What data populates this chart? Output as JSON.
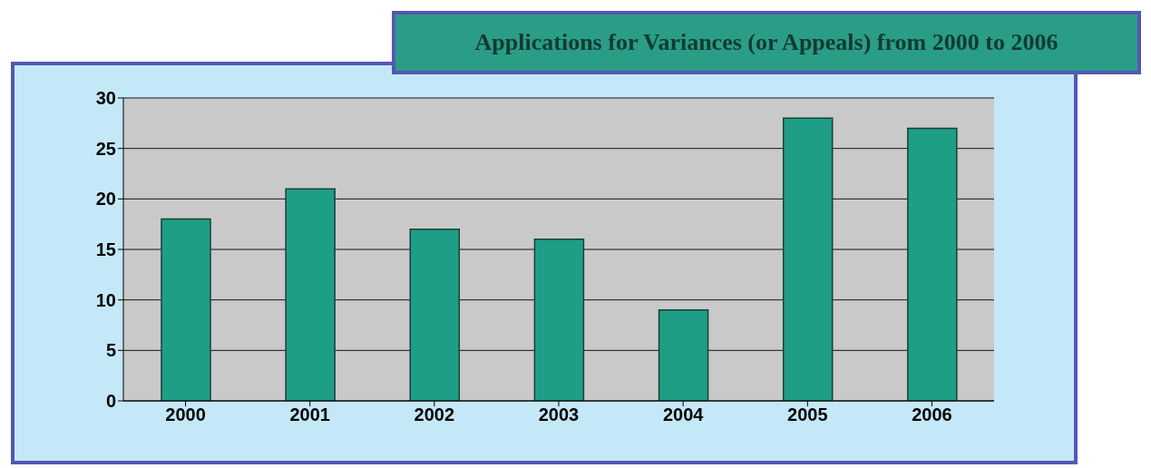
{
  "chart_data": {
    "type": "bar",
    "title": "Applications for Variances (or Appeals) from 2000 to 2006",
    "categories": [
      "2000",
      "2001",
      "2002",
      "2003",
      "2004",
      "2005",
      "2006"
    ],
    "values": [
      18,
      21,
      17,
      16,
      9,
      28,
      27
    ],
    "color": "#1f9e86",
    "ylim": [
      0,
      30
    ],
    "yticks": [
      0,
      5,
      10,
      15,
      20,
      25,
      30
    ],
    "grid": "y"
  }
}
